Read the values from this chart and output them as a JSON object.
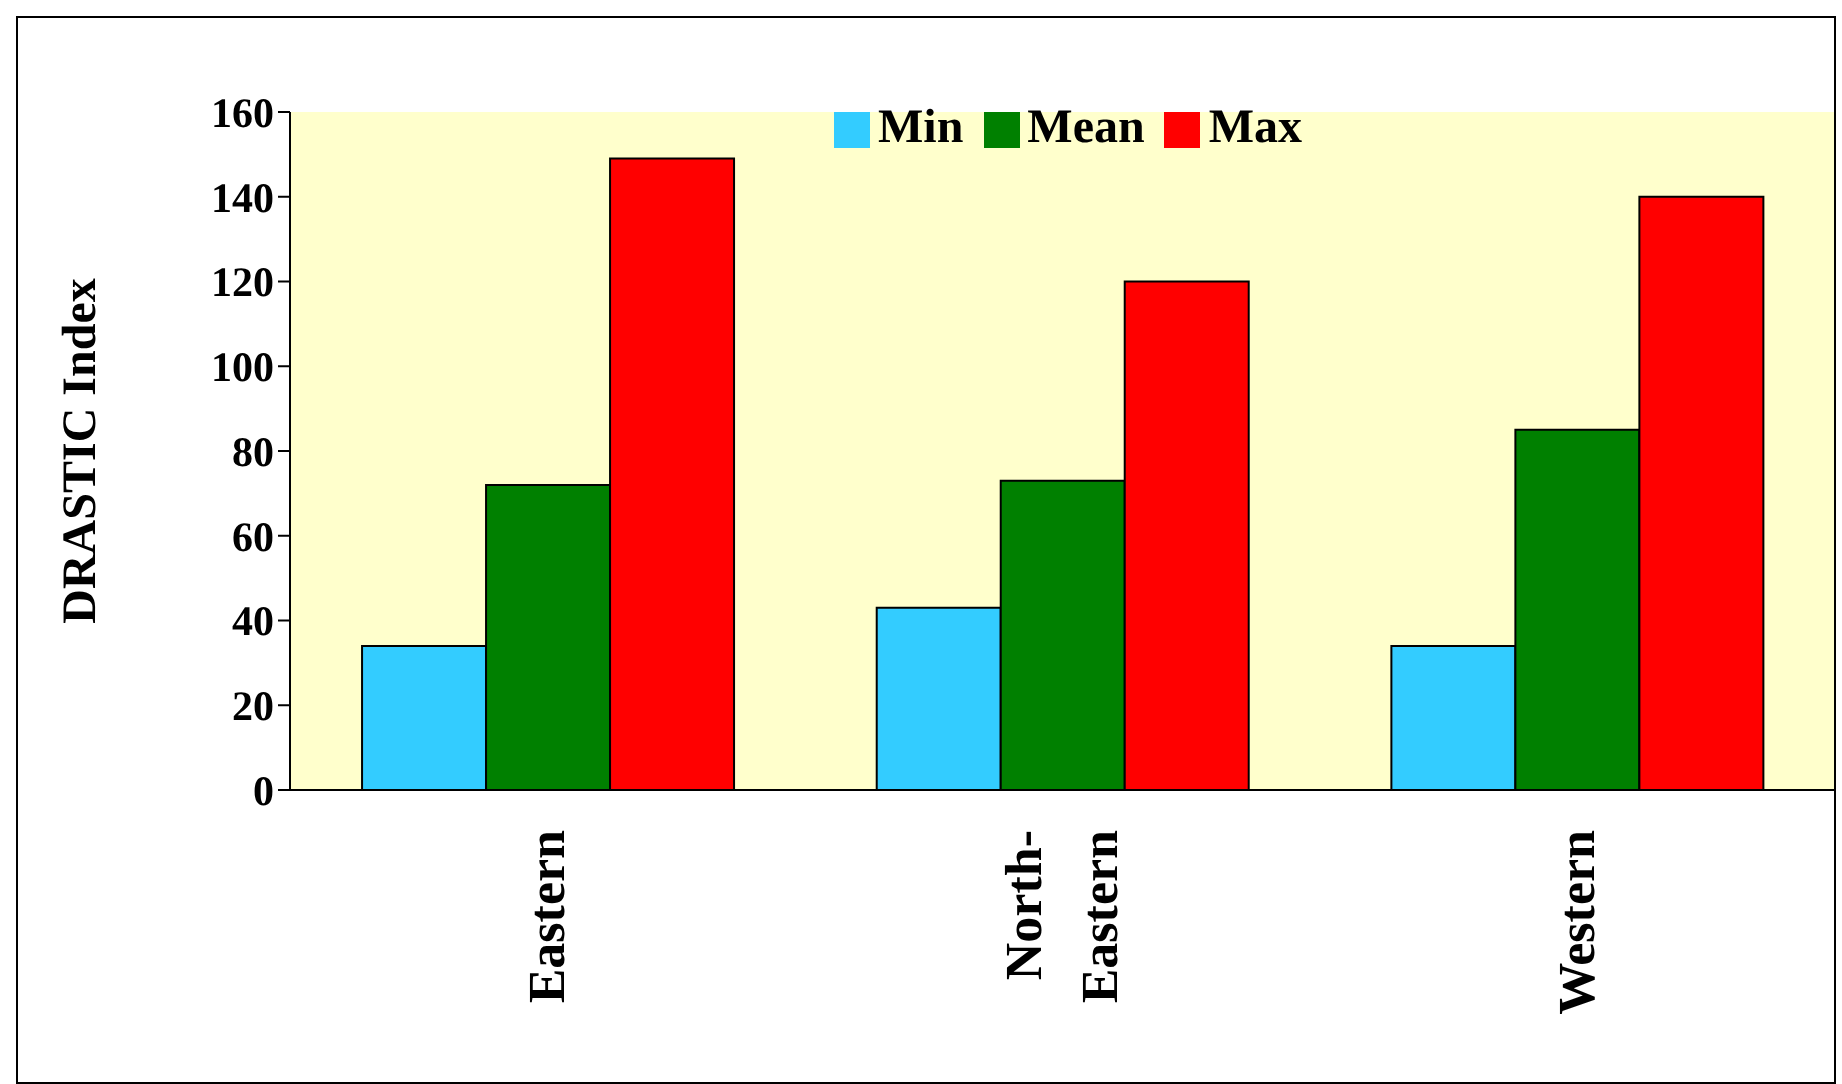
{
  "chart_data": {
    "type": "bar",
    "ylabel": "DRASTIC Index",
    "categories": [
      "Eastern",
      "North-Eastern",
      "Western"
    ],
    "series": [
      {
        "name": "Min",
        "color": "#33ccff",
        "values": [
          34,
          43,
          34
        ]
      },
      {
        "name": "Mean",
        "color": "#008000",
        "values": [
          72,
          73,
          85
        ]
      },
      {
        "name": "Max",
        "color": "#ff0000",
        "values": [
          149,
          120,
          140
        ]
      }
    ],
    "ylim": [
      0,
      160
    ],
    "yticks": [
      0,
      20,
      40,
      60,
      80,
      100,
      120,
      140,
      160
    ],
    "grid": false,
    "legend": "top"
  }
}
